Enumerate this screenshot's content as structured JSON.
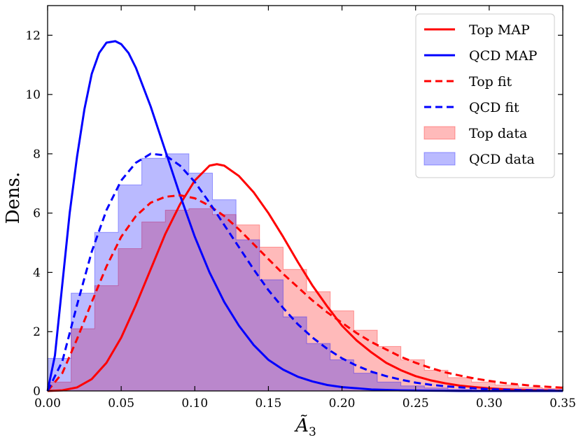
{
  "chart_data": {
    "type": "area",
    "title": "",
    "xlabel": "Ã",
    "xlabel_subscript": "3",
    "ylabel": "Dens.",
    "xlim": [
      0.0,
      0.35
    ],
    "ylim": [
      0,
      13
    ],
    "x_ticks": [
      "0.00",
      "0.05",
      "0.10",
      "0.15",
      "0.20",
      "0.25",
      "0.30",
      "0.35"
    ],
    "y_ticks": [
      "0",
      "2",
      "4",
      "6",
      "8",
      "10",
      "12"
    ],
    "x_tick_values": [
      0.0,
      0.05,
      0.1,
      0.15,
      0.2,
      0.25,
      0.3,
      0.35
    ],
    "y_tick_values": [
      0,
      2,
      4,
      6,
      8,
      10,
      12
    ],
    "legend_position": "top-right",
    "histograms": [
      {
        "name": "Top data",
        "color": "#ff0000",
        "bin_edges": [
          0.0,
          0.016,
          0.032,
          0.048,
          0.064,
          0.08,
          0.096,
          0.112,
          0.128,
          0.144,
          0.16,
          0.176,
          0.192,
          0.208,
          0.224,
          0.24,
          0.256,
          0.272,
          0.288,
          0.304,
          0.32,
          0.336,
          0.35
        ],
        "values": [
          0.3,
          2.1,
          3.55,
          4.8,
          5.7,
          6.1,
          6.15,
          5.95,
          5.6,
          4.85,
          4.1,
          3.35,
          2.7,
          2.05,
          1.5,
          1.05,
          0.7,
          0.45,
          0.3,
          0.2,
          0.12,
          0.08
        ]
      },
      {
        "name": "QCD data",
        "color": "#0000ff",
        "bin_edges": [
          0.0,
          0.016,
          0.032,
          0.048,
          0.064,
          0.08,
          0.096,
          0.112,
          0.128,
          0.144,
          0.16,
          0.176,
          0.192,
          0.208,
          0.224,
          0.24,
          0.256,
          0.272,
          0.288,
          0.304,
          0.32,
          0.336,
          0.35
        ],
        "values": [
          1.1,
          3.3,
          5.35,
          6.95,
          7.85,
          8.0,
          7.35,
          6.45,
          5.1,
          3.75,
          2.5,
          1.6,
          1.05,
          0.6,
          0.3,
          0.17,
          0.1,
          0.05,
          0.03,
          0.02,
          0.01,
          0.01
        ]
      }
    ],
    "curves": [
      {
        "name": "Top MAP",
        "color": "#ff0000",
        "style": "solid",
        "x": [
          0.0,
          0.01,
          0.02,
          0.03,
          0.04,
          0.05,
          0.06,
          0.07,
          0.08,
          0.09,
          0.1,
          0.11,
          0.115,
          0.12,
          0.13,
          0.14,
          0.15,
          0.16,
          0.17,
          0.18,
          0.19,
          0.2,
          0.21,
          0.22,
          0.23,
          0.24,
          0.25,
          0.26,
          0.27,
          0.28,
          0.29,
          0.3,
          0.31,
          0.32,
          0.33,
          0.34,
          0.35
        ],
        "y": [
          0.0,
          0.02,
          0.12,
          0.4,
          0.95,
          1.8,
          2.9,
          4.1,
          5.3,
          6.3,
          7.1,
          7.6,
          7.65,
          7.6,
          7.25,
          6.7,
          6.0,
          5.2,
          4.35,
          3.55,
          2.85,
          2.2,
          1.7,
          1.3,
          0.95,
          0.7,
          0.5,
          0.36,
          0.26,
          0.18,
          0.13,
          0.09,
          0.06,
          0.04,
          0.03,
          0.02,
          0.01
        ]
      },
      {
        "name": "QCD MAP",
        "color": "#0000ff",
        "style": "solid",
        "x": [
          0.0,
          0.005,
          0.01,
          0.015,
          0.02,
          0.025,
          0.03,
          0.035,
          0.04,
          0.046,
          0.05,
          0.055,
          0.06,
          0.07,
          0.08,
          0.09,
          0.1,
          0.11,
          0.12,
          0.13,
          0.14,
          0.15,
          0.16,
          0.17,
          0.18,
          0.19,
          0.2,
          0.22,
          0.24,
          0.26,
          0.28,
          0.3,
          0.32,
          0.35
        ],
        "y": [
          0.0,
          1.2,
          3.6,
          6.0,
          7.9,
          9.5,
          10.7,
          11.4,
          11.75,
          11.8,
          11.7,
          11.4,
          10.9,
          9.6,
          8.1,
          6.6,
          5.2,
          4.0,
          3.0,
          2.2,
          1.55,
          1.05,
          0.72,
          0.48,
          0.32,
          0.2,
          0.13,
          0.05,
          0.02,
          0.01,
          0.0,
          0.0,
          0.0,
          0.0
        ]
      },
      {
        "name": "Top fit",
        "color": "#ff0000",
        "style": "dashed",
        "x": [
          0.0,
          0.01,
          0.02,
          0.03,
          0.04,
          0.05,
          0.06,
          0.07,
          0.08,
          0.09,
          0.1,
          0.11,
          0.12,
          0.13,
          0.14,
          0.15,
          0.16,
          0.17,
          0.18,
          0.19,
          0.2,
          0.21,
          0.22,
          0.23,
          0.24,
          0.25,
          0.26,
          0.27,
          0.28,
          0.29,
          0.3,
          0.31,
          0.32,
          0.33,
          0.34,
          0.35
        ],
        "y": [
          0.0,
          0.6,
          1.75,
          3.0,
          4.2,
          5.2,
          5.9,
          6.35,
          6.55,
          6.6,
          6.5,
          6.25,
          5.9,
          5.45,
          4.95,
          4.45,
          3.95,
          3.5,
          3.05,
          2.65,
          2.3,
          1.95,
          1.65,
          1.4,
          1.15,
          0.95,
          0.78,
          0.63,
          0.52,
          0.42,
          0.34,
          0.27,
          0.22,
          0.17,
          0.14,
          0.11
        ]
      },
      {
        "name": "QCD fit",
        "color": "#0000ff",
        "style": "dashed",
        "x": [
          0.0,
          0.01,
          0.02,
          0.03,
          0.04,
          0.05,
          0.06,
          0.07,
          0.08,
          0.09,
          0.1,
          0.11,
          0.12,
          0.13,
          0.14,
          0.15,
          0.16,
          0.17,
          0.18,
          0.19,
          0.2,
          0.21,
          0.22,
          0.23,
          0.24,
          0.25,
          0.26,
          0.27,
          0.28,
          0.29,
          0.3,
          0.32,
          0.35
        ],
        "y": [
          0.0,
          1.0,
          2.9,
          4.7,
          6.1,
          7.1,
          7.7,
          8.0,
          7.95,
          7.6,
          7.05,
          6.35,
          5.6,
          4.85,
          4.1,
          3.4,
          2.8,
          2.25,
          1.8,
          1.42,
          1.1,
          0.85,
          0.65,
          0.5,
          0.38,
          0.28,
          0.21,
          0.16,
          0.12,
          0.09,
          0.06,
          0.03,
          0.01
        ]
      }
    ],
    "legend": [
      {
        "label": "Top MAP",
        "color": "#ff0000",
        "kind": "line-solid"
      },
      {
        "label": "QCD MAP",
        "color": "#0000ff",
        "kind": "line-solid"
      },
      {
        "label": "Top fit",
        "color": "#ff0000",
        "kind": "line-dashed"
      },
      {
        "label": "QCD fit",
        "color": "#0000ff",
        "kind": "line-dashed"
      },
      {
        "label": "Top data",
        "color": "#ff0000",
        "kind": "patch"
      },
      {
        "label": "QCD data",
        "color": "#0000ff",
        "kind": "patch"
      }
    ]
  }
}
